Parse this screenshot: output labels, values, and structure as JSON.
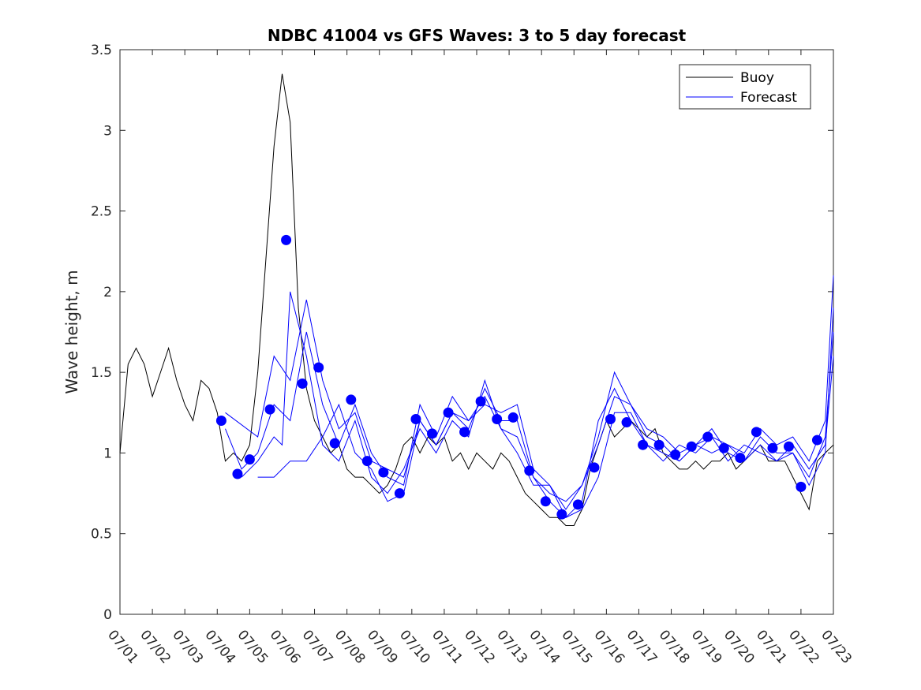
{
  "chart_data": {
    "type": "line",
    "title": "NDBC 41004 vs GFS Waves: 3 to 5 day forecast",
    "xlabel": "",
    "ylabel": "Wave height, m",
    "xlim": [
      "07/01",
      "07/23"
    ],
    "ylim": [
      0,
      3.5
    ],
    "xticks": [
      "07/01",
      "07/02",
      "07/03",
      "07/04",
      "07/05",
      "07/06",
      "07/07",
      "07/08",
      "07/09",
      "07/10",
      "07/11",
      "07/12",
      "07/13",
      "07/14",
      "07/15",
      "07/16",
      "07/17",
      "07/18",
      "07/19",
      "07/20",
      "07/21",
      "07/22",
      "07/23"
    ],
    "yticks": [
      "0",
      "0.5",
      "1",
      "1.5",
      "2",
      "2.5",
      "3",
      "3.5"
    ],
    "legend": {
      "placement": "top-right"
    },
    "colors": {
      "buoy": "#000000",
      "forecast": "#0000ff",
      "markers": "#0000ff"
    },
    "series": [
      {
        "name": "Buoy",
        "x": [
          "07/01",
          "07/01 06:00",
          "07/01 12:00",
          "07/01 18:00",
          "07/02",
          "07/02 06:00",
          "07/02 12:00",
          "07/02 18:00",
          "07/03",
          "07/03 06:00",
          "07/03 12:00",
          "07/03 18:00",
          "07/04",
          "07/04 06:00",
          "07/04 12:00",
          "07/04 18:00",
          "07/05",
          "07/05 06:00",
          "07/05 12:00",
          "07/05 18:00",
          "07/06",
          "07/06 06:00",
          "07/06 12:00",
          "07/06 18:00",
          "07/07",
          "07/07 06:00",
          "07/07 12:00",
          "07/07 18:00",
          "07/08",
          "07/08 06:00",
          "07/08 12:00",
          "07/08 18:00",
          "07/09",
          "07/09 06:00",
          "07/09 12:00",
          "07/09 18:00",
          "07/10",
          "07/10 06:00",
          "07/10 12:00",
          "07/10 18:00",
          "07/11",
          "07/11 06:00",
          "07/11 12:00",
          "07/11 18:00",
          "07/12",
          "07/12 06:00",
          "07/12 12:00",
          "07/12 18:00",
          "07/13",
          "07/13 06:00",
          "07/13 12:00",
          "07/13 18:00",
          "07/14",
          "07/14 06:00",
          "07/14 12:00",
          "07/14 18:00",
          "07/15",
          "07/15 06:00",
          "07/15 12:00",
          "07/15 18:00",
          "07/16",
          "07/16 06:00",
          "07/16 12:00",
          "07/16 18:00",
          "07/17",
          "07/17 06:00",
          "07/17 12:00",
          "07/17 18:00",
          "07/18",
          "07/18 06:00",
          "07/18 12:00",
          "07/18 18:00",
          "07/19",
          "07/19 06:00",
          "07/19 12:00",
          "07/19 18:00",
          "07/20",
          "07/20 06:00",
          "07/20 12:00",
          "07/20 18:00",
          "07/21",
          "07/21 06:00",
          "07/21 12:00",
          "07/21 18:00",
          "07/22",
          "07/22 06:00",
          "07/22 12:00",
          "07/22 18:00",
          "07/23"
        ],
        "values": [
          1.0,
          1.55,
          1.65,
          1.55,
          1.35,
          1.5,
          1.65,
          1.45,
          1.3,
          1.2,
          1.45,
          1.4,
          1.25,
          0.95,
          1.0,
          0.95,
          1.05,
          1.5,
          2.2,
          2.9,
          3.35,
          3.05,
          1.9,
          1.4,
          1.2,
          1.1,
          1.0,
          1.05,
          0.9,
          0.85,
          0.85,
          0.8,
          0.75,
          0.8,
          0.9,
          1.05,
          1.1,
          1.0,
          1.1,
          1.05,
          1.1,
          0.95,
          1.0,
          0.9,
          1.0,
          0.95,
          0.9,
          1.0,
          0.95,
          0.85,
          0.75,
          0.7,
          0.65,
          0.6,
          0.6,
          0.55,
          0.55,
          0.65,
          0.9,
          1.05,
          1.2,
          1.1,
          1.15,
          1.2,
          1.15,
          1.1,
          1.15,
          1.0,
          0.95,
          0.9,
          0.9,
          0.95,
          0.9,
          0.95,
          0.95,
          1.0,
          0.9,
          0.95,
          1.0,
          1.05,
          0.95,
          0.95,
          0.95,
          0.85,
          0.75,
          0.65,
          0.95,
          1.0,
          1.05
        ]
      },
      {
        "name": "Forecast",
        "x": [
          "07/04 06:00",
          "07/05 06:00",
          "07/05 18:00",
          "07/06 06:00",
          "07/06 18:00",
          "07/07 06:00",
          "07/07 18:00",
          "07/08 06:00",
          "07/08 18:00",
          "07/09 06:00",
          "07/09 18:00",
          "07/10 06:00",
          "07/10 18:00",
          "07/11 06:00",
          "07/11 18:00",
          "07/12 06:00",
          "07/12 18:00",
          "07/13 06:00",
          "07/13 18:00",
          "07/14 06:00",
          "07/14 18:00",
          "07/15 06:00",
          "07/15 18:00",
          "07/16 06:00",
          "07/16 18:00",
          "07/17 06:00",
          "07/17 18:00",
          "07/18 06:00",
          "07/18 18:00",
          "07/19 06:00",
          "07/19 18:00",
          "07/20 06:00",
          "07/20 18:00",
          "07/21 06:00",
          "07/21 18:00",
          "07/22 06:00",
          "07/22 18:00",
          "07/23"
        ],
        "values": [
          1.25,
          1.1,
          1.6,
          1.45,
          1.95,
          1.45,
          1.15,
          1.25,
          0.95,
          0.9,
          0.85,
          1.2,
          1.05,
          1.25,
          1.15,
          1.4,
          1.2,
          1.2,
          0.85,
          0.75,
          0.7,
          0.8,
          1.05,
          1.35,
          1.3,
          1.15,
          1.1,
          1.0,
          1.05,
          1.1,
          1.05,
          1.0,
          1.15,
          1.05,
          1.1,
          0.95,
          1.2,
          2.1
        ]
      },
      {
        "name": "",
        "x": [
          "07/04 06:00",
          "07/04 18:00",
          "07/05 06:00",
          "07/05 18:00",
          "07/06 06:00",
          "07/06 18:00",
          "07/07 06:00",
          "07/07 18:00",
          "07/08 06:00",
          "07/08 18:00",
          "07/09 06:00",
          "07/09 18:00",
          "07/10 06:00",
          "07/10 18:00",
          "07/11 06:00",
          "07/11 18:00",
          "07/12 06:00",
          "07/12 18:00",
          "07/13 06:00",
          "07/13 18:00",
          "07/14 06:00",
          "07/14 18:00",
          "07/15 06:00",
          "07/15 18:00",
          "07/16 06:00",
          "07/16 18:00",
          "07/17 06:00",
          "07/17 18:00",
          "07/18 06:00",
          "07/18 18:00",
          "07/19 06:00",
          "07/19 18:00",
          "07/20 06:00",
          "07/20 18:00",
          "07/21 06:00",
          "07/21 18:00",
          "07/22 06:00",
          "07/22 18:00",
          "07/23"
        ],
        "values": [
          1.15,
          0.9,
          1.0,
          1.3,
          1.2,
          1.75,
          1.3,
          1.05,
          1.3,
          1.0,
          0.85,
          0.8,
          1.3,
          1.1,
          1.35,
          1.2,
          1.3,
          1.25,
          1.3,
          0.9,
          0.8,
          0.65,
          0.8,
          1.1,
          1.5,
          1.3,
          1.1,
          1.05,
          0.95,
          1.05,
          1.15,
          1.0,
          0.95,
          1.1,
          1.0,
          1.0,
          0.8,
          1.0,
          1.9
        ]
      },
      {
        "name": "",
        "x": [
          "07/04 18:00",
          "07/05 06:00",
          "07/05 18:00",
          "07/06",
          "07/06 06:00",
          "07/06 18:00",
          "07/07 06:00",
          "07/07 18:00",
          "07/08 06:00",
          "07/08 18:00",
          "07/09 06:00",
          "07/09 18:00",
          "07/10 06:00",
          "07/10 18:00",
          "07/11 06:00",
          "07/11 18:00",
          "07/12 06:00",
          "07/12 18:00",
          "07/13 06:00",
          "07/13 18:00",
          "07/14 06:00",
          "07/14 18:00",
          "07/15 06:00",
          "07/15 18:00",
          "07/16 06:00",
          "07/16 18:00",
          "07/17 06:00",
          "07/17 18:00",
          "07/18 06:00",
          "07/18 18:00",
          "07/19 06:00",
          "07/19 18:00",
          "07/20 06:00",
          "07/20 18:00",
          "07/21 06:00",
          "07/21 18:00",
          "07/22 06:00",
          "07/22 18:00",
          "07/23"
        ],
        "values": [
          0.85,
          0.95,
          1.1,
          1.05,
          2.0,
          1.6,
          1.05,
          0.95,
          1.2,
          0.85,
          0.75,
          0.9,
          1.15,
          1.0,
          1.2,
          1.1,
          1.45,
          1.15,
          1.1,
          0.85,
          0.7,
          0.6,
          0.7,
          1.2,
          1.4,
          1.2,
          1.05,
          0.95,
          1.05,
          1.0,
          1.1,
          0.95,
          1.05,
          1.0,
          0.95,
          1.05,
          0.9,
          1.05,
          1.6
        ]
      },
      {
        "name": "",
        "x": [
          "07/05 06:00",
          "07/05 18:00",
          "07/06 06:00",
          "07/06 18:00",
          "07/07 06:00",
          "07/07 18:00",
          "07/08 06:00",
          "07/08 18:00",
          "07/09 06:00",
          "07/09 18:00",
          "07/10 06:00",
          "07/10 18:00",
          "07/11 06:00",
          "07/11 18:00",
          "07/12 06:00",
          "07/12 18:00",
          "07/13 06:00",
          "07/13 18:00",
          "07/14 06:00",
          "07/14 18:00",
          "07/15 06:00",
          "07/15 18:00",
          "07/16 06:00",
          "07/16 18:00",
          "07/17 06:00",
          "07/17 18:00",
          "07/18 06:00",
          "07/18 18:00",
          "07/19 06:00",
          "07/19 18:00",
          "07/20 06:00",
          "07/20 18:00",
          "07/21 06:00",
          "07/21 18:00",
          "07/22 06:00",
          "07/22 18:00",
          "07/23"
        ],
        "values": [
          0.85,
          0.85,
          0.95,
          0.95,
          1.1,
          1.3,
          1.0,
          0.9,
          0.7,
          0.75,
          1.2,
          1.05,
          1.25,
          1.2,
          1.35,
          1.15,
          1.0,
          0.8,
          0.8,
          0.6,
          0.65,
          0.85,
          1.25,
          1.25,
          1.05,
          1.0,
          0.95,
          1.05,
          1.0,
          1.05,
          0.95,
          1.05,
          0.95,
          1.0,
          0.85,
          1.1,
          1.75
        ]
      }
    ],
    "markers": {
      "x": [
        "07/04 03:00",
        "07/04 15:00",
        "07/05",
        "07/05 15:00",
        "07/06 03:00",
        "07/06 15:00",
        "07/07 03:00",
        "07/07 15:00",
        "07/08 03:00",
        "07/08 15:00",
        "07/09 03:00",
        "07/09 15:00",
        "07/10 03:00",
        "07/10 15:00",
        "07/11 03:00",
        "07/11 15:00",
        "07/12 03:00",
        "07/12 15:00",
        "07/13 03:00",
        "07/13 15:00",
        "07/14 03:00",
        "07/14 15:00",
        "07/15 03:00",
        "07/15 15:00",
        "07/16 03:00",
        "07/16 15:00",
        "07/17 03:00",
        "07/17 15:00",
        "07/18 03:00",
        "07/18 15:00",
        "07/19 03:00",
        "07/19 15:00",
        "07/20 03:00",
        "07/20 15:00",
        "07/21 03:00",
        "07/21 15:00",
        "07/22",
        "07/22 12:00"
      ],
      "values": [
        1.2,
        0.87,
        0.96,
        1.27,
        2.32,
        1.43,
        1.53,
        1.06,
        1.33,
        0.95,
        0.88,
        0.75,
        1.21,
        1.12,
        1.25,
        1.13,
        1.32,
        1.21,
        1.22,
        0.89,
        0.7,
        0.62,
        0.68,
        0.91,
        1.21,
        1.19,
        1.05,
        1.05,
        0.99,
        1.04,
        1.1,
        1.03,
        0.97,
        1.13,
        1.03,
        1.04,
        0.79,
        1.08
      ]
    }
  }
}
